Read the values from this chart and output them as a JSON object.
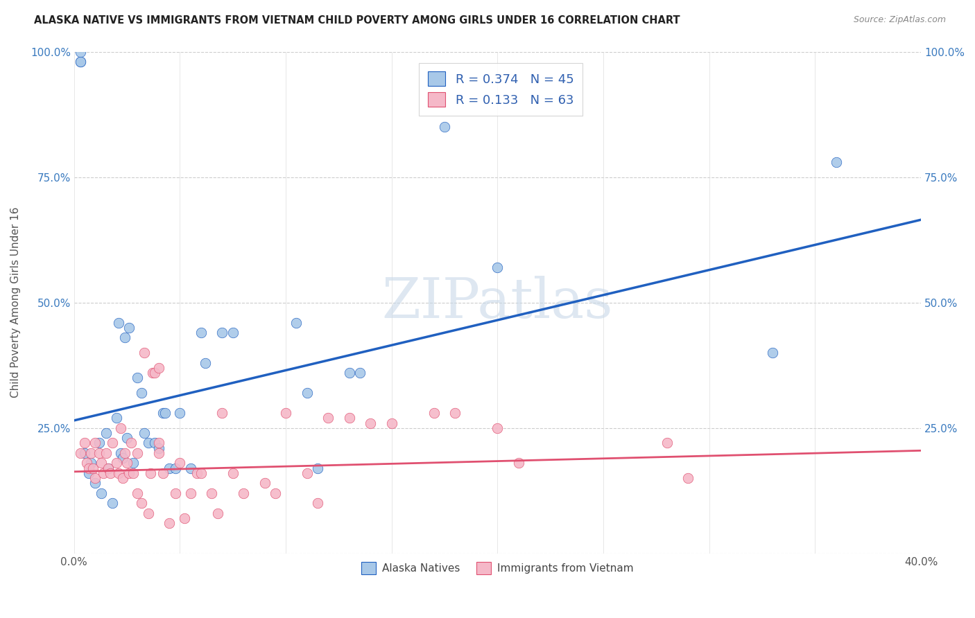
{
  "title": "ALASKA NATIVE VS IMMIGRANTS FROM VIETNAM CHILD POVERTY AMONG GIRLS UNDER 16 CORRELATION CHART",
  "source": "Source: ZipAtlas.com",
  "ylabel": "Child Poverty Among Girls Under 16",
  "ytick_labels_left": [
    "",
    "25.0%",
    "50.0%",
    "75.0%",
    "100.0%"
  ],
  "ytick_labels_right": [
    "",
    "25.0%",
    "50.0%",
    "75.0%",
    "100.0%"
  ],
  "ytick_values": [
    0.0,
    0.25,
    0.5,
    0.75,
    1.0
  ],
  "xlim": [
    0.0,
    0.4
  ],
  "ylim": [
    0.0,
    1.0
  ],
  "blue_color": "#a8c8e8",
  "pink_color": "#f5b8c8",
  "blue_line_color": "#2060c0",
  "pink_line_color": "#e05070",
  "watermark": "ZIPatlas",
  "watermark_color": "#c8d8e8",
  "legend_label_blue": "Alaska Natives",
  "legend_label_pink": "Immigrants from Vietnam",
  "blue_R": 0.374,
  "pink_R": 0.133,
  "blue_N": 45,
  "pink_N": 63,
  "blue_points": [
    [
      0.003,
      0.98
    ],
    [
      0.003,
      0.98
    ],
    [
      0.003,
      1.0
    ],
    [
      0.005,
      0.2
    ],
    [
      0.007,
      0.16
    ],
    [
      0.008,
      0.18
    ],
    [
      0.01,
      0.14
    ],
    [
      0.012,
      0.22
    ],
    [
      0.013,
      0.12
    ],
    [
      0.015,
      0.24
    ],
    [
      0.016,
      0.17
    ],
    [
      0.018,
      0.1
    ],
    [
      0.02,
      0.27
    ],
    [
      0.021,
      0.46
    ],
    [
      0.022,
      0.2
    ],
    [
      0.023,
      0.19
    ],
    [
      0.024,
      0.43
    ],
    [
      0.025,
      0.23
    ],
    [
      0.026,
      0.45
    ],
    [
      0.028,
      0.18
    ],
    [
      0.03,
      0.35
    ],
    [
      0.032,
      0.32
    ],
    [
      0.033,
      0.24
    ],
    [
      0.035,
      0.22
    ],
    [
      0.038,
      0.22
    ],
    [
      0.04,
      0.21
    ],
    [
      0.042,
      0.28
    ],
    [
      0.043,
      0.28
    ],
    [
      0.045,
      0.17
    ],
    [
      0.048,
      0.17
    ],
    [
      0.05,
      0.28
    ],
    [
      0.055,
      0.17
    ],
    [
      0.06,
      0.44
    ],
    [
      0.062,
      0.38
    ],
    [
      0.07,
      0.44
    ],
    [
      0.075,
      0.44
    ],
    [
      0.105,
      0.46
    ],
    [
      0.11,
      0.32
    ],
    [
      0.115,
      0.17
    ],
    [
      0.13,
      0.36
    ],
    [
      0.135,
      0.36
    ],
    [
      0.175,
      0.85
    ],
    [
      0.2,
      0.57
    ],
    [
      0.33,
      0.4
    ],
    [
      0.36,
      0.78
    ]
  ],
  "pink_points": [
    [
      0.003,
      0.2
    ],
    [
      0.005,
      0.22
    ],
    [
      0.006,
      0.18
    ],
    [
      0.007,
      0.17
    ],
    [
      0.008,
      0.2
    ],
    [
      0.009,
      0.17
    ],
    [
      0.01,
      0.15
    ],
    [
      0.01,
      0.22
    ],
    [
      0.012,
      0.2
    ],
    [
      0.013,
      0.18
    ],
    [
      0.014,
      0.16
    ],
    [
      0.015,
      0.2
    ],
    [
      0.016,
      0.17
    ],
    [
      0.017,
      0.16
    ],
    [
      0.018,
      0.22
    ],
    [
      0.02,
      0.18
    ],
    [
      0.021,
      0.16
    ],
    [
      0.022,
      0.25
    ],
    [
      0.023,
      0.15
    ],
    [
      0.024,
      0.2
    ],
    [
      0.025,
      0.18
    ],
    [
      0.026,
      0.16
    ],
    [
      0.027,
      0.22
    ],
    [
      0.028,
      0.16
    ],
    [
      0.03,
      0.12
    ],
    [
      0.03,
      0.2
    ],
    [
      0.032,
      0.1
    ],
    [
      0.033,
      0.4
    ],
    [
      0.035,
      0.08
    ],
    [
      0.036,
      0.16
    ],
    [
      0.037,
      0.36
    ],
    [
      0.038,
      0.36
    ],
    [
      0.04,
      0.37
    ],
    [
      0.04,
      0.22
    ],
    [
      0.04,
      0.2
    ],
    [
      0.042,
      0.16
    ],
    [
      0.045,
      0.06
    ],
    [
      0.048,
      0.12
    ],
    [
      0.05,
      0.18
    ],
    [
      0.052,
      0.07
    ],
    [
      0.055,
      0.12
    ],
    [
      0.058,
      0.16
    ],
    [
      0.06,
      0.16
    ],
    [
      0.065,
      0.12
    ],
    [
      0.068,
      0.08
    ],
    [
      0.07,
      0.28
    ],
    [
      0.075,
      0.16
    ],
    [
      0.08,
      0.12
    ],
    [
      0.09,
      0.14
    ],
    [
      0.095,
      0.12
    ],
    [
      0.1,
      0.28
    ],
    [
      0.11,
      0.16
    ],
    [
      0.115,
      0.1
    ],
    [
      0.12,
      0.27
    ],
    [
      0.13,
      0.27
    ],
    [
      0.14,
      0.26
    ],
    [
      0.15,
      0.26
    ],
    [
      0.17,
      0.28
    ],
    [
      0.18,
      0.28
    ],
    [
      0.2,
      0.25
    ],
    [
      0.21,
      0.18
    ],
    [
      0.28,
      0.22
    ],
    [
      0.29,
      0.15
    ]
  ],
  "blue_line_x": [
    0.0,
    0.4
  ],
  "blue_line_y": [
    0.265,
    0.665
  ],
  "pink_line_x": [
    0.0,
    0.4
  ],
  "pink_line_y": [
    0.163,
    0.205
  ]
}
